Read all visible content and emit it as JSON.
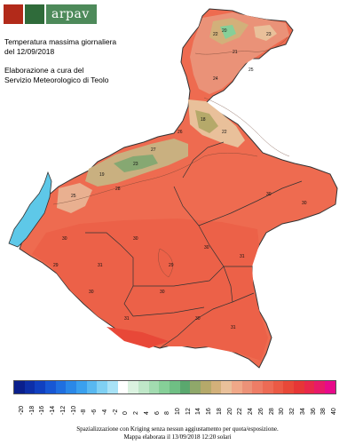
{
  "header": {
    "logo_text": "arpav",
    "title_line1": "Temperatura massima giornaliera",
    "title_line2": "del 12/09/2018",
    "credit_line1": "Elaborazione a cura del",
    "credit_line2": "Servizio Meteorologico di Teolo"
  },
  "map": {
    "lake_color": "#5ec8e8",
    "region_fill": "#ee6b50",
    "plain_labels": [
      "30",
      "31",
      "30",
      "29",
      "30",
      "31",
      "30",
      "30",
      "31",
      "31",
      "30",
      "29",
      "30",
      "30"
    ],
    "mountain_labels": [
      "22",
      "21",
      "20",
      "23",
      "25",
      "24",
      "18",
      "22",
      "26",
      "27",
      "23",
      "19",
      "25",
      "28"
    ]
  },
  "legend": {
    "labels": [
      "-20",
      "-18",
      "-16",
      "-14",
      "-12",
      "-10",
      "-8",
      "-6",
      "-4",
      "-2",
      "0",
      "2",
      "4",
      "6",
      "8",
      "10",
      "12",
      "14",
      "16",
      "18",
      "20",
      "22",
      "24",
      "26",
      "28",
      "30",
      "32",
      "34",
      "36",
      "38",
      "40"
    ],
    "colors": [
      "#0a1f8c",
      "#0d2fa8",
      "#1040c0",
      "#1757d4",
      "#1f6fe0",
      "#2a88e8",
      "#3aa0ee",
      "#58b8f0",
      "#7fd0f3",
      "#a8e2f6",
      "#ffffff",
      "#dbf2e0",
      "#bfe7c8",
      "#a2dbb0",
      "#86cf98",
      "#6fbf84",
      "#5aa86e",
      "#8fa86a",
      "#b5a96a",
      "#d2b07a",
      "#e9c09a",
      "#f0a888",
      "#ec9278",
      "#ee7d66",
      "#ed6b55",
      "#eb5a45",
      "#e84838",
      "#e63636",
      "#e8284a",
      "#e81a68",
      "#e80a8a"
    ]
  },
  "footer": {
    "line1": "Spazializzazione con Kriging senza nessun aggiustamento per quota/esposizione.",
    "line2": "Mappa elaborata il 13/09/2018 12:20 solari"
  }
}
